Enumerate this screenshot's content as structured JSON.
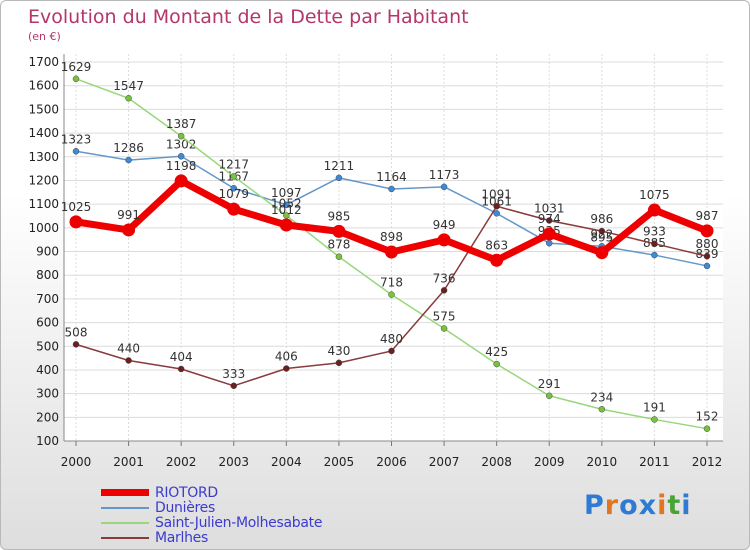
{
  "header": {
    "title": "Evolution du Montant de la Dette par Habitant",
    "unit": "(en €)"
  },
  "brand": {
    "letters": [
      "P",
      "r",
      "o",
      "x",
      "i",
      "t",
      "i"
    ],
    "colors": [
      "#2f7bd3",
      "#e2751f",
      "#2f7bd3",
      "#2f7bd3",
      "#e2751f",
      "#4aa336",
      "#2f7bd3"
    ]
  },
  "chart_data": {
    "type": "line",
    "title": "Evolution du Montant de la Dette par Habitant",
    "ylabel": "(en €)",
    "x": [
      "2000",
      "2001",
      "2002",
      "2003",
      "2004",
      "2005",
      "2006",
      "2007",
      "2008",
      "2009",
      "2010",
      "2011",
      "2012"
    ],
    "ylim": [
      100,
      1700
    ],
    "yticks": [
      100,
      200,
      300,
      400,
      500,
      600,
      700,
      800,
      900,
      1000,
      1100,
      1200,
      1300,
      1400,
      1500,
      1600,
      1700
    ],
    "grid": true,
    "legend": "bottom-left",
    "series": [
      {
        "name": "Dunières",
        "color": "#6497c9",
        "width": 1.5,
        "marker": "#3c8ad8",
        "values": [
          1323,
          1286,
          1302,
          1167,
          1097,
          1211,
          1164,
          1173,
          1061,
          935,
          922,
          885,
          839
        ]
      },
      {
        "name": "Saint-Julien-Molhesabate",
        "color": "#98d77c",
        "width": 1.5,
        "marker": "#78c23e",
        "values": [
          1629,
          1547,
          1387,
          1217,
          1052,
          878,
          718,
          575,
          425,
          291,
          234,
          191,
          152
        ]
      },
      {
        "name": "Marlhes",
        "color": "#8a3a3a",
        "width": 1.5,
        "marker": "#6b1f1f",
        "values": [
          508,
          440,
          404,
          333,
          406,
          430,
          480,
          736,
          1091,
          1031,
          986,
          933,
          880
        ]
      },
      {
        "name": "RIOTORD",
        "color": "#ee0000",
        "width": 7,
        "marker": "#ee0000",
        "values": [
          1025,
          991,
          1198,
          1079,
          1012,
          985,
          898,
          949,
          863,
          974,
          895,
          1075,
          987
        ]
      }
    ]
  }
}
